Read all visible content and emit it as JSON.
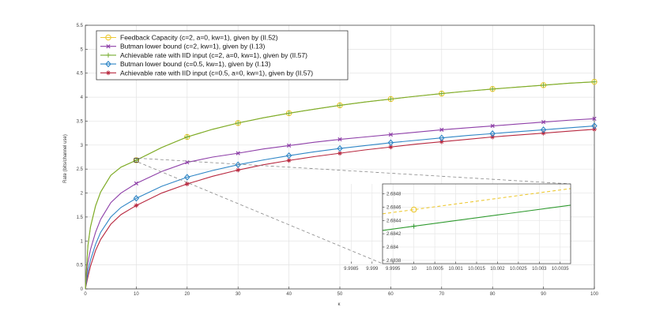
{
  "chart_data": [
    {
      "type": "line",
      "xlabel": "κ",
      "ylabel": "Rate (bits/channel use)",
      "xlim": [
        0,
        100
      ],
      "ylim": [
        0,
        5.5
      ],
      "x_ticks": [
        "0",
        "10",
        "20",
        "30",
        "40",
        "50",
        "60",
        "70",
        "80",
        "90",
        "100"
      ],
      "y_ticks": [
        "0",
        "0.5",
        "1",
        "1.5",
        "2",
        "2.5",
        "3",
        "3.5",
        "4",
        "4.5",
        "5",
        "5.5"
      ],
      "grid": true,
      "legend_position": "top-left",
      "x": [
        0.5,
        1,
        2,
        3,
        5,
        7,
        10,
        15,
        20,
        25,
        30,
        35,
        40,
        45,
        50,
        55,
        60,
        65,
        70,
        75,
        80,
        85,
        90,
        95,
        100
      ],
      "marker_x": [
        10,
        20,
        30,
        40,
        50,
        60,
        70,
        80,
        90,
        100
      ],
      "series": [
        {
          "name": "Feedback Capacity (c=2, a=0, kw=1), given by (II.52)",
          "color": "#edc934",
          "marker": "circle",
          "values": [
            0.9,
            1.29,
            1.73,
            2.02,
            2.37,
            2.54,
            2.685,
            2.95,
            3.17,
            3.33,
            3.46,
            3.57,
            3.665,
            3.75,
            3.83,
            3.9,
            3.96,
            4.02,
            4.075,
            4.125,
            4.17,
            4.21,
            4.25,
            4.29,
            4.32
          ]
        },
        {
          "name": "Butman lower bound (c=2, kw=1), given by (I.13)",
          "color": "#8e3fa8",
          "marker": "x",
          "values": [
            0.55,
            0.82,
            1.18,
            1.45,
            1.8,
            2.0,
            2.2,
            2.45,
            2.64,
            2.75,
            2.83,
            2.92,
            2.99,
            3.06,
            3.12,
            3.17,
            3.22,
            3.27,
            3.32,
            3.36,
            3.4,
            3.44,
            3.48,
            3.52,
            3.55
          ]
        },
        {
          "name": "Achievable rate with IID input (c=2, a=0, kw=1), given by (II.57)",
          "color": "#77ac30",
          "marker": "plus",
          "values": [
            0.9,
            1.29,
            1.73,
            2.02,
            2.37,
            2.54,
            2.685,
            2.95,
            3.17,
            3.33,
            3.46,
            3.57,
            3.665,
            3.75,
            3.83,
            3.9,
            3.96,
            4.02,
            4.075,
            4.125,
            4.17,
            4.21,
            4.25,
            4.29,
            4.32
          ]
        },
        {
          "name": "Butman lower bound (c=0.5, kw=1), given by (I.13)",
          "color": "#2f86c6",
          "marker": "diamond",
          "values": [
            0.35,
            0.6,
            0.93,
            1.18,
            1.5,
            1.7,
            1.89,
            2.14,
            2.33,
            2.47,
            2.59,
            2.69,
            2.78,
            2.86,
            2.93,
            2.99,
            3.05,
            3.1,
            3.15,
            3.2,
            3.24,
            3.28,
            3.32,
            3.36,
            3.4
          ]
        },
        {
          "name": "Achievable rate with IID input (c=0.5, a=0, kw=1), given by (II.57)",
          "color": "#b8283f",
          "marker": "asterisk",
          "values": [
            0.25,
            0.47,
            0.8,
            1.03,
            1.35,
            1.55,
            1.74,
            2.0,
            2.19,
            2.35,
            2.48,
            2.59,
            2.68,
            2.76,
            2.83,
            2.9,
            2.96,
            3.02,
            3.07,
            3.12,
            3.17,
            3.21,
            3.25,
            3.29,
            3.33
          ]
        }
      ]
    },
    {
      "type": "line",
      "inset": true,
      "xlim": [
        9.99925,
        10.00375
      ],
      "ylim": [
        2.68375,
        2.68495
      ],
      "x_ticks": [
        "9.9985",
        "9.999",
        "9.9995",
        "10",
        "10.0005",
        "10.001",
        "10.0015",
        "10.002",
        "10.0025",
        "10.003",
        "10.0035"
      ],
      "y_ticks": [
        "2.6838",
        "2.684",
        "2.6842",
        "2.6844",
        "2.6846",
        "2.6848"
      ],
      "grid": true,
      "series": [
        {
          "name": "Feedback Capacity (c=2, a=0, kw=1), given by (II.52)",
          "color": "#edc934",
          "style": "dashed",
          "x": [
            9.99925,
            10.00375
          ],
          "values": [
            2.6845,
            2.68488
          ],
          "marker_x": [
            10
          ],
          "marker": "circle"
        },
        {
          "name": "Achievable rate with IID input (c=2, a=0, kw=1), given by (II.57)",
          "color": "#2f9a2f",
          "style": "solid",
          "x": [
            9.99925,
            10.00375
          ],
          "values": [
            2.68425,
            2.68463
          ],
          "marker_x": [
            10
          ],
          "marker": "plus"
        }
      ]
    }
  ]
}
